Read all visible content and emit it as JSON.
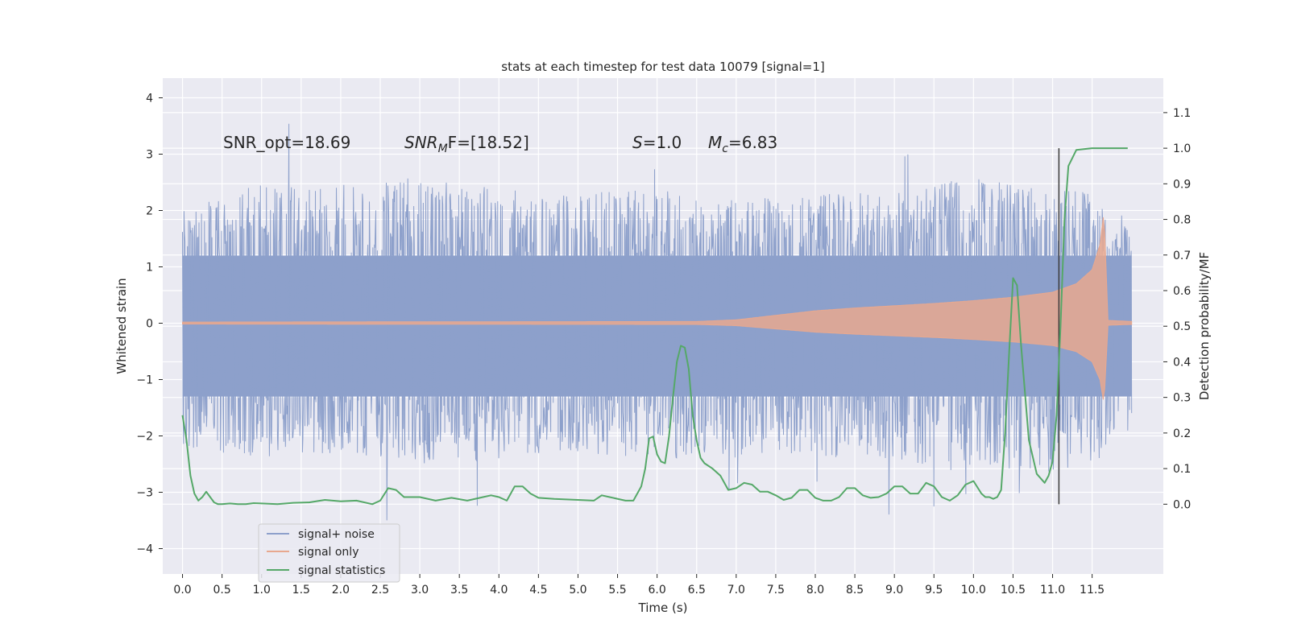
{
  "chart_data": {
    "type": "line",
    "title": "stats at each timestep for test data 10079 [signal=1]",
    "xlabel": "Time (s)",
    "ylabel_left": "Whitened strain",
    "ylabel_right": "Detection probability/MF",
    "xlim": [
      -0.25,
      12.4
    ],
    "ylim_left": [
      -4.45,
      4.35
    ],
    "ylim_right": [
      -0.196,
      1.197
    ],
    "x_ticks": [
      "0.0",
      "0.5",
      "1.0",
      "1.5",
      "2.0",
      "2.5",
      "3.0",
      "3.5",
      "4.0",
      "4.5",
      "5.0",
      "5.5",
      "6.0",
      "6.5",
      "7.0",
      "7.5",
      "8.0",
      "8.5",
      "9.0",
      "9.5",
      "10.0",
      "10.5",
      "11.0",
      "11.5"
    ],
    "y_ticks_left": [
      "−4",
      "−3",
      "−2",
      "−1",
      "0",
      "1",
      "2",
      "3",
      "4"
    ],
    "y_ticks_right": [
      "0.0",
      "0.1",
      "0.2",
      "0.3",
      "0.4",
      "0.5",
      "0.6",
      "0.7",
      "0.8",
      "0.9",
      "1.0",
      "1.1"
    ],
    "grid": true,
    "legend_position": "lower-left",
    "annotations": {
      "snr_opt": "SNR_opt=18.69",
      "snr_mf_sym": "SNR",
      "snr_mf_sub": "M",
      "snr_mf_val": "F=[18.52]",
      "s_sym": "S",
      "s_val": "=1.0",
      "mc_sym": "M",
      "mc_sub": "c",
      "mc_val": "=6.83"
    },
    "vertical_marker_x": 11.08,
    "series": [
      {
        "name": "signal+ noise",
        "color": "#8da0cb",
        "x_range": [
          0.0,
          12.0
        ],
        "envelope": {
          "x": [
            0.0,
            1.0,
            2.0,
            3.0,
            4.0,
            5.0,
            6.0,
            7.0,
            8.0,
            9.0,
            10.0,
            10.5,
            11.0,
            11.3,
            11.6,
            11.9,
            12.0
          ],
          "upper": [
            2.0,
            2.5,
            2.4,
            2.6,
            2.4,
            2.3,
            2.4,
            2.2,
            2.3,
            2.4,
            2.6,
            2.5,
            2.3,
            2.5,
            2.2,
            2.0,
            1.9
          ],
          "lower": [
            -2.2,
            -2.4,
            -2.3,
            -2.5,
            -2.4,
            -2.3,
            -2.4,
            -2.4,
            -2.4,
            -2.5,
            -2.5,
            -2.6,
            -2.7,
            -2.6,
            -2.4,
            -2.2,
            -2.0
          ]
        }
      },
      {
        "name": "signal only",
        "color": "#e8a88f",
        "envelope": {
          "x": [
            0.0,
            6.5,
            7.0,
            7.5,
            8.0,
            8.5,
            9.0,
            9.5,
            10.0,
            10.5,
            11.0,
            11.3,
            11.5,
            11.6,
            11.65,
            11.7,
            12.0
          ],
          "amplitude": [
            0.02,
            0.03,
            0.06,
            0.14,
            0.22,
            0.27,
            0.31,
            0.35,
            0.4,
            0.46,
            0.55,
            0.7,
            0.95,
            1.4,
            2.0,
            0.05,
            0.03
          ]
        }
      },
      {
        "name": "signal statistics",
        "color": "#55a868",
        "x": [
          0.0,
          0.05,
          0.1,
          0.15,
          0.2,
          0.25,
          0.3,
          0.35,
          0.4,
          0.45,
          0.5,
          0.6,
          0.7,
          0.8,
          0.9,
          1.0,
          1.2,
          1.4,
          1.6,
          1.8,
          1.9,
          2.0,
          2.2,
          2.4,
          2.5,
          2.6,
          2.7,
          2.8,
          3.0,
          3.2,
          3.4,
          3.6,
          3.8,
          3.9,
          4.0,
          4.1,
          4.2,
          4.3,
          4.4,
          4.5,
          4.7,
          5.0,
          5.2,
          5.3,
          5.4,
          5.6,
          5.7,
          5.8,
          5.85,
          5.9,
          5.95,
          6.0,
          6.05,
          6.1,
          6.15,
          6.2,
          6.25,
          6.3,
          6.35,
          6.4,
          6.45,
          6.5,
          6.55,
          6.6,
          6.7,
          6.8,
          6.9,
          7.0,
          7.1,
          7.2,
          7.3,
          7.4,
          7.5,
          7.6,
          7.7,
          7.8,
          7.9,
          8.0,
          8.1,
          8.2,
          8.3,
          8.4,
          8.5,
          8.6,
          8.7,
          8.8,
          8.9,
          9.0,
          9.1,
          9.2,
          9.3,
          9.4,
          9.5,
          9.6,
          9.7,
          9.8,
          9.9,
          10.0,
          10.1,
          10.15,
          10.2,
          10.25,
          10.3,
          10.35,
          10.4,
          10.45,
          10.5,
          10.55,
          10.6,
          10.7,
          10.8,
          10.9,
          10.95,
          11.0,
          11.05,
          11.1,
          11.15,
          11.2,
          11.3,
          11.5,
          11.8,
          11.95
        ],
        "y": [
          0.25,
          0.18,
          0.08,
          0.03,
          0.01,
          0.02,
          0.035,
          0.02,
          0.005,
          0.0,
          0.0,
          0.002,
          0.0,
          0.0,
          0.003,
          0.002,
          0.0,
          0.004,
          0.005,
          0.012,
          0.01,
          0.008,
          0.01,
          0.0,
          0.01,
          0.045,
          0.04,
          0.02,
          0.02,
          0.01,
          0.018,
          0.01,
          0.02,
          0.025,
          0.02,
          0.01,
          0.05,
          0.05,
          0.03,
          0.018,
          0.015,
          0.012,
          0.01,
          0.025,
          0.02,
          0.01,
          0.01,
          0.05,
          0.1,
          0.185,
          0.19,
          0.14,
          0.12,
          0.115,
          0.19,
          0.3,
          0.4,
          0.445,
          0.44,
          0.38,
          0.25,
          0.18,
          0.13,
          0.115,
          0.1,
          0.08,
          0.04,
          0.045,
          0.06,
          0.055,
          0.035,
          0.035,
          0.025,
          0.012,
          0.018,
          0.04,
          0.04,
          0.018,
          0.01,
          0.01,
          0.02,
          0.045,
          0.045,
          0.025,
          0.018,
          0.02,
          0.03,
          0.05,
          0.05,
          0.03,
          0.03,
          0.06,
          0.05,
          0.02,
          0.01,
          0.025,
          0.055,
          0.065,
          0.03,
          0.02,
          0.02,
          0.015,
          0.02,
          0.04,
          0.2,
          0.42,
          0.635,
          0.615,
          0.45,
          0.18,
          0.085,
          0.06,
          0.08,
          0.12,
          0.25,
          0.5,
          0.8,
          0.95,
          0.995,
          1.0,
          1.0,
          1.0
        ]
      }
    ]
  }
}
